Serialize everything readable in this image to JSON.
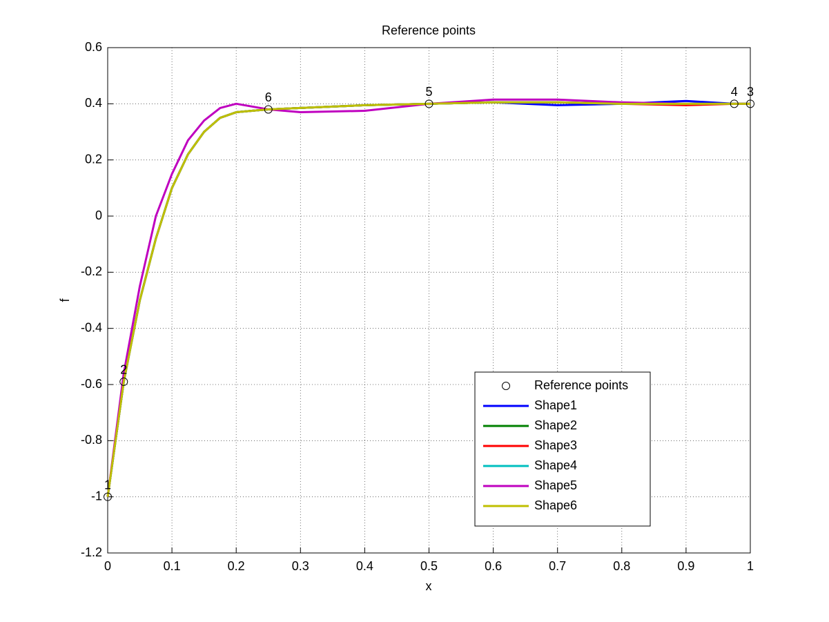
{
  "chart_data": {
    "type": "line",
    "title": "Reference points",
    "xlabel": "x",
    "ylabel": "f",
    "xlim": [
      0,
      1
    ],
    "ylim": [
      -1.2,
      0.6
    ],
    "xticks": [
      0,
      0.1,
      0.2,
      0.3,
      0.4,
      0.5,
      0.6,
      0.7,
      0.8,
      0.9,
      1
    ],
    "yticks": [
      -1.2,
      -1,
      -0.8,
      -0.6,
      -0.4,
      -0.2,
      0,
      0.2,
      0.4,
      0.6
    ],
    "grid": true,
    "legend": "southeast",
    "reference_points": {
      "name": "Reference points",
      "x": [
        0,
        0.025,
        1,
        0.975,
        0.5,
        0.25
      ],
      "values": [
        -1,
        -0.59,
        0.4,
        0.4,
        0.4,
        0.38
      ],
      "labels": [
        "1",
        "2",
        "3",
        "4",
        "5",
        "6"
      ]
    },
    "x": [
      0,
      0.025,
      0.05,
      0.075,
      0.1,
      0.125,
      0.15,
      0.175,
      0.2,
      0.25,
      0.3,
      0.4,
      0.5,
      0.6,
      0.7,
      0.8,
      0.9,
      0.975,
      1
    ],
    "series": [
      {
        "name": "Shape1",
        "color": "#0000ff",
        "values": [
          -1,
          -0.59,
          -0.3,
          -0.08,
          0.1,
          0.22,
          0.3,
          0.35,
          0.37,
          0.38,
          0.385,
          0.395,
          0.4,
          0.405,
          0.395,
          0.4,
          0.41,
          0.4,
          0.4
        ]
      },
      {
        "name": "Shape2",
        "color": "#008000",
        "values": [
          -1,
          -0.59,
          -0.3,
          -0.08,
          0.1,
          0.22,
          0.3,
          0.35,
          0.37,
          0.38,
          0.385,
          0.395,
          0.4,
          0.405,
          0.405,
          0.4,
          0.4,
          0.4,
          0.4
        ]
      },
      {
        "name": "Shape3",
        "color": "#ff0000",
        "values": [
          -1,
          -0.59,
          -0.3,
          -0.08,
          0.1,
          0.22,
          0.3,
          0.35,
          0.37,
          0.38,
          0.385,
          0.395,
          0.4,
          0.405,
          0.405,
          0.4,
          0.395,
          0.4,
          0.4
        ]
      },
      {
        "name": "Shape4",
        "color": "#00bfbf",
        "values": [
          -1,
          -0.59,
          -0.3,
          -0.08,
          0.1,
          0.22,
          0.3,
          0.35,
          0.37,
          0.38,
          0.385,
          0.395,
          0.4,
          0.405,
          0.405,
          0.4,
          0.4,
          0.4,
          0.4
        ]
      },
      {
        "name": "Shape5",
        "color": "#bf00bf",
        "values": [
          -1,
          -0.56,
          -0.25,
          0.0,
          0.15,
          0.27,
          0.34,
          0.385,
          0.4,
          0.38,
          0.37,
          0.375,
          0.4,
          0.415,
          0.415,
          0.405,
          0.4,
          0.4,
          0.4
        ]
      },
      {
        "name": "Shape6",
        "color": "#bfbf00",
        "values": [
          -1,
          -0.59,
          -0.3,
          -0.08,
          0.1,
          0.22,
          0.3,
          0.35,
          0.37,
          0.38,
          0.385,
          0.395,
          0.4,
          0.405,
          0.405,
          0.4,
          0.4,
          0.4,
          0.4
        ]
      }
    ]
  }
}
